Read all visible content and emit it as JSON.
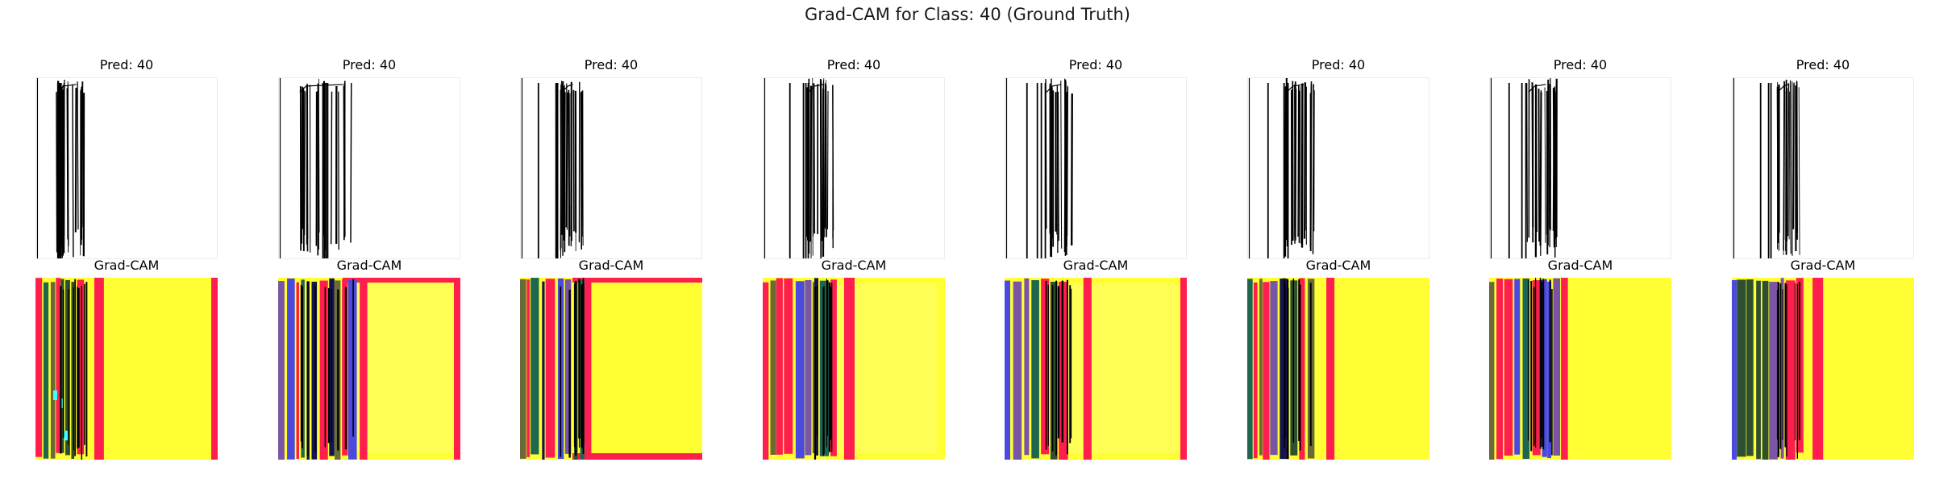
{
  "figure": {
    "suptitle": "Grad-CAM for Class: 40 (Ground Truth)"
  },
  "chart_data": {
    "type": "heatmap",
    "title": "Grad-CAM for Class: 40 (Ground Truth)",
    "layout": "2 rows × 8 columns",
    "grid": false,
    "axes": "off",
    "panels": [
      {
        "pred_title": "Pred: 40",
        "cam_title": "Grad-CAM"
      },
      {
        "pred_title": "Pred: 40",
        "cam_title": "Grad-CAM"
      },
      {
        "pred_title": "Pred: 40",
        "cam_title": "Grad-CAM"
      },
      {
        "pred_title": "Pred: 40",
        "cam_title": "Grad-CAM"
      },
      {
        "pred_title": "Pred: 40",
        "cam_title": "Grad-CAM"
      },
      {
        "pred_title": "Pred: 40",
        "cam_title": "Grad-CAM"
      },
      {
        "pred_title": "Pred: 40",
        "cam_title": "Grad-CAM"
      },
      {
        "pred_title": "Pred: 40",
        "cam_title": "Grad-CAM"
      }
    ],
    "colors": {
      "background_yellow": "#ffff33",
      "light_yellow": "#ffff55",
      "red": "#ff1f4f",
      "blue": "#4a4ae0",
      "purple": "#7a55a5",
      "teal": "#1e6650",
      "dark_green": "#2e5030",
      "olive": "#6a6a38",
      "navy": "#141450",
      "cyan": "#44ffff",
      "stroke": "#000000"
    }
  }
}
